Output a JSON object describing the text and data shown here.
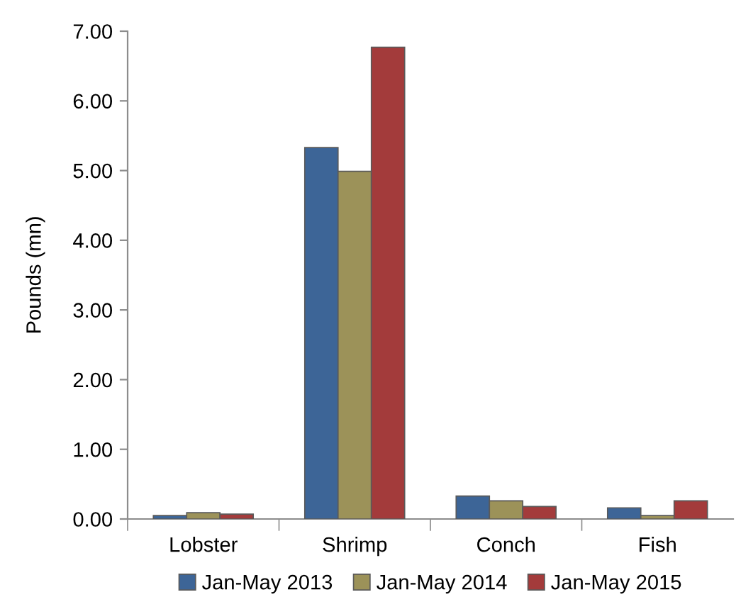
{
  "chart_data": {
    "type": "bar",
    "ylabel": "Pounds (mn)",
    "categories": [
      "Lobster",
      "Shrimp",
      "Conch",
      "Fish"
    ],
    "series": [
      {
        "name": "Jan-May 2013",
        "color": "#3d6597",
        "values": [
          0.05,
          5.33,
          0.33,
          0.16
        ]
      },
      {
        "name": "Jan-May 2014",
        "color": "#9c9259",
        "values": [
          0.09,
          4.99,
          0.26,
          0.05
        ]
      },
      {
        "name": "Jan-May 2015",
        "color": "#a33b3b",
        "values": [
          0.07,
          6.77,
          0.18,
          0.26
        ]
      }
    ],
    "ylim": [
      0,
      7
    ],
    "yticks": [
      {
        "value": 0,
        "label": "0.00"
      },
      {
        "value": 1,
        "label": "1.00"
      },
      {
        "value": 2,
        "label": "2.00"
      },
      {
        "value": 3,
        "label": "3.00"
      },
      {
        "value": 4,
        "label": "4.00"
      },
      {
        "value": 5,
        "label": "5.00"
      },
      {
        "value": 6,
        "label": "6.00"
      },
      {
        "value": 7,
        "label": "7.00"
      }
    ],
    "grid": false,
    "legend": "bottom"
  }
}
